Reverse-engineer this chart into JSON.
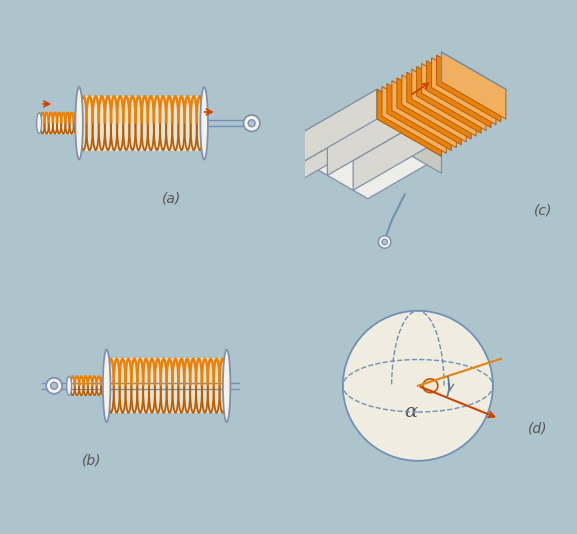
{
  "bg_color": "#aec4cc",
  "coil_color": "#e8820a",
  "coil_edge_color": "#b85c05",
  "body_color": "#f0ede0",
  "body_color2": "#e8e4d4",
  "body_edge_color": "#7090b8",
  "body_edge_color2": "#6080a8",
  "label_color": "#5c7898",
  "arrow_color": "#cc4400",
  "text_color": "#555555",
  "labels": [
    "(a)",
    "(b)",
    "(c)",
    "(d)"
  ],
  "alpha_label": "α",
  "flange_color": "#f5f2e8",
  "flange_edge": "#8090b0",
  "ecore_light": "#eeeee8",
  "ecore_mid": "#d8d8d0",
  "ecore_dark": "#c8c8c0",
  "ecore_edge": "#8090a8"
}
